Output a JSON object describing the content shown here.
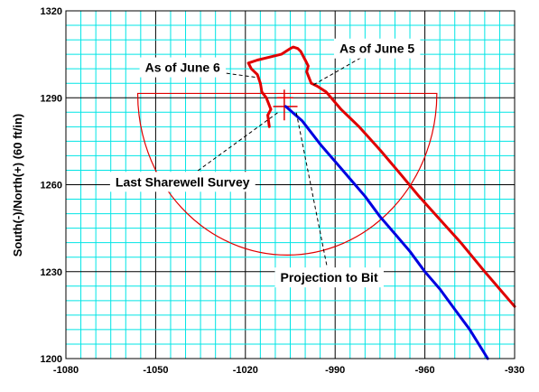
{
  "chart_data": {
    "type": "line",
    "ylabel": "South(-)/North(+) (60 ft/in)",
    "xlim": [
      -1080,
      -930
    ],
    "ylim": [
      1200,
      1320
    ],
    "x_ticks": [
      -1080,
      -1050,
      -1020,
      -990,
      -960,
      -930
    ],
    "y_ticks": [
      1200,
      1230,
      1260,
      1290,
      1320
    ],
    "grid": true,
    "colors": {
      "grid": "#00e5e5",
      "red": "#e00000",
      "blue": "#0000e0",
      "axes": "#000000"
    },
    "series": [
      {
        "color": "#e00000",
        "x": [
          -1012,
          -1012.5,
          -1011.5,
          -1013,
          -1014.5,
          -1015,
          -1016,
          -1018,
          -1019,
          -1016,
          -1012,
          -1008,
          -1005,
          -1004,
          -1002.5,
          -1001.5,
          -1000,
          -999,
          -999.5,
          -998,
          -996,
          -993,
          -988,
          -982,
          -975,
          -968,
          -962,
          -955,
          -948,
          -940,
          -935,
          -930
        ],
        "y": [
          1280,
          1284,
          1286,
          1290,
          1292,
          1295,
          1298,
          1300,
          1302,
          1303,
          1304,
          1305,
          1307,
          1307.5,
          1307,
          1306,
          1303,
          1301,
          1299,
          1295,
          1294,
          1292,
          1286,
          1280,
          1272,
          1263.5,
          1256,
          1248,
          1240,
          1230,
          1224,
          1218
        ]
      },
      {
        "color": "#0000e0",
        "x": [
          -1006.5,
          -1001,
          -995,
          -990,
          -985,
          -980,
          -975,
          -970,
          -965,
          -960,
          -955,
          -950,
          -945,
          -939
        ],
        "y": [
          1287,
          1282,
          1274,
          1268,
          1262,
          1256,
          1249,
          1243,
          1237,
          1230,
          1224,
          1217,
          1210,
          1200
        ]
      }
    ],
    "reference_shapes": {
      "arc": {
        "color": "#e00000",
        "center_x": -1006,
        "center_y": 1291.5,
        "radius": 50,
        "y_scale": 1.08
      },
      "markers": {
        "color": "#e00000",
        "cross_x": -1007,
        "cross_y": 1290,
        "bit_x": -1006.5,
        "bit_y": 1287
      }
    },
    "annotations": [
      {
        "text": "As of June 6",
        "anchor_x": -1041,
        "anchor_y": 1300.5,
        "target_x": -1016,
        "target_y": 1297
      },
      {
        "text": "As of June 5",
        "anchor_x": -976,
        "anchor_y": 1307,
        "target_x": -998,
        "target_y": 1294
      },
      {
        "text": "Last Sharewell Survey",
        "anchor_x": -1041,
        "anchor_y": 1261,
        "target_x": -1009,
        "target_y": 1285
      },
      {
        "text": "Projection to Bit",
        "anchor_x": -992,
        "anchor_y": 1228,
        "target_x": -1003,
        "target_y": 1285
      }
    ]
  }
}
